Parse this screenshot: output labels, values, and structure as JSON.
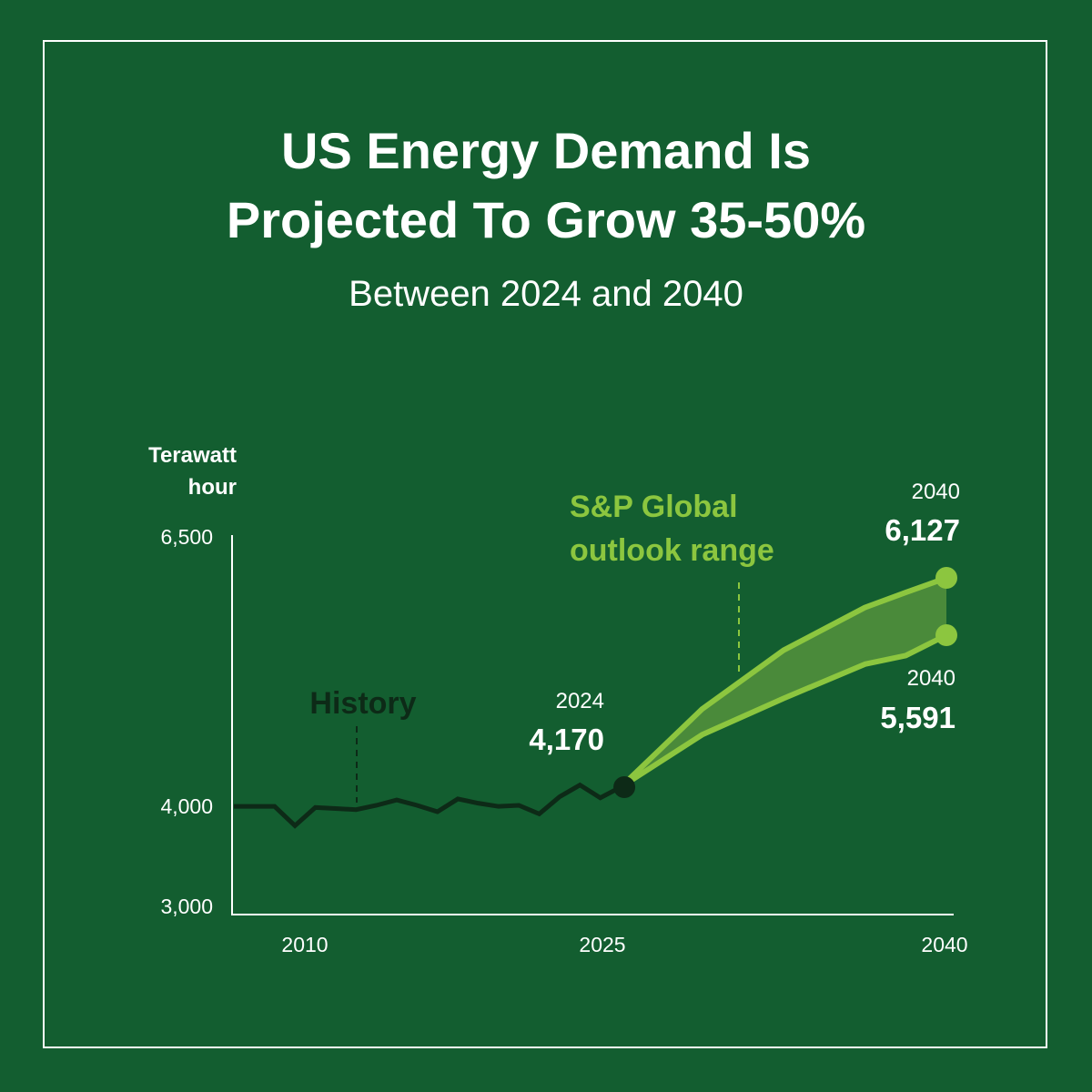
{
  "title_lines": [
    "US Energy Demand Is",
    "Projected To Grow 35-50%"
  ],
  "subtitle": "Between 2024 and 2040",
  "colors": {
    "background": "#135e30",
    "history_line": "#0d2a17",
    "outlook": "#8cc63f",
    "band": "#4a8a3a",
    "white": "#ffffff"
  },
  "chart_data": {
    "type": "line",
    "title": "US Energy Demand Is Projected To Grow 35-50%",
    "subtitle": "Between 2024 and 2040",
    "ylabel_lines": [
      "Terawatt",
      "hour"
    ],
    "xlabel": "",
    "y_ticks": [
      {
        "value": 6500,
        "label": "6,500"
      },
      {
        "value": 4000,
        "label": "4,000"
      },
      {
        "value": 3000,
        "label": "3,000"
      }
    ],
    "x_ticks": [
      {
        "value": 2010,
        "label": "2010"
      },
      {
        "value": 2025,
        "label": "2025"
      },
      {
        "value": 2040,
        "label": "2040"
      }
    ],
    "series": [
      {
        "name": "History",
        "x": [
          2005,
          2006,
          2007,
          2008,
          2009,
          2010,
          2011,
          2012,
          2013,
          2014,
          2015,
          2016,
          2017,
          2018,
          2019,
          2020,
          2021,
          2022,
          2023,
          2024
        ],
        "y": [
          3990,
          3990,
          3990,
          3810,
          3980,
          3970,
          3960,
          4000,
          4050,
          4000,
          3940,
          4060,
          4020,
          3990,
          4000,
          3920,
          4080,
          4190,
          4070,
          4170
        ]
      },
      {
        "name": "S&P Global outlook high",
        "x": [
          2024,
          2028,
          2032,
          2036,
          2038,
          2040
        ],
        "y": [
          4170,
          4900,
          5450,
          5850,
          5990,
          6127
        ]
      },
      {
        "name": "S&P Global outlook low",
        "x": [
          2024,
          2028,
          2032,
          2036,
          2038,
          2040
        ],
        "y": [
          4170,
          4660,
          5000,
          5320,
          5400,
          5591
        ]
      }
    ],
    "annotations": {
      "history_label": "History",
      "outlook_label_lines": [
        "S&P Global",
        "outlook range"
      ],
      "point_2024": {
        "year_label": "2024",
        "value_label": "4,170"
      },
      "high_2040": {
        "year_label": "2040",
        "value_label": "6,127"
      },
      "low_2040": {
        "year_label": "2040",
        "value_label": "5,591"
      }
    }
  }
}
